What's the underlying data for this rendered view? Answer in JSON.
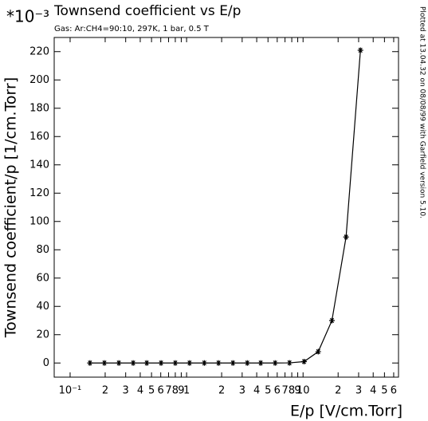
{
  "chart_data": {
    "type": "line",
    "title": "Townsend coefficient vs E/p",
    "subtitle": "Gas: Ar:CH4=90:10, 297K, 1 bar, 0.5 T",
    "side_note": "Plotted at 13.04.32 on 08/08/99 with Garfield version 5.10.",
    "x_label": "E/p [V/cm.Torr]",
    "y_label": "Townsend coefficient/p [1/cm.Torr]",
    "y_multiplier": "*10⁻³",
    "x_log": true,
    "color": "#000000",
    "x": [
      0.148,
      0.197,
      0.262,
      0.348,
      0.455,
      0.604,
      0.8,
      1.06,
      1.42,
      1.88,
      2.5,
      3.32,
      4.33,
      5.76,
      7.65,
      10.2,
      13.5,
      17.7,
      23.4,
      31.1
    ],
    "values": [
      0,
      0,
      0,
      0,
      0,
      0,
      0,
      0,
      0,
      0,
      0,
      0,
      0,
      0,
      0.1,
      1,
      8,
      30,
      89,
      221
    ],
    "xlim": [
      0.073,
      66
    ],
    "ylim": [
      -10,
      230
    ],
    "xticks": [
      {
        "value": 0.1,
        "label": "10⁻¹"
      },
      {
        "value": 0.2,
        "label": "2"
      },
      {
        "value": 0.3,
        "label": "3"
      },
      {
        "value": 0.4,
        "label": "4"
      },
      {
        "value": 0.5,
        "label": "5"
      },
      {
        "value": 0.6,
        "label": "6"
      },
      {
        "value": 0.7,
        "label": "7"
      },
      {
        "value": 0.8,
        "label": "8"
      },
      {
        "value": 0.9,
        "label": "9"
      },
      1,
      2,
      3,
      4,
      5,
      6,
      7,
      8,
      9,
      10,
      {
        "value": 20,
        "label": "2"
      },
      {
        "value": 30,
        "label": "3"
      },
      {
        "value": 40,
        "label": "4"
      },
      {
        "value": 50,
        "label": "5"
      },
      {
        "value": 60,
        "label": "6"
      }
    ],
    "yticks": [
      0,
      20,
      40,
      60,
      80,
      100,
      120,
      140,
      160,
      180,
      200,
      220
    ]
  }
}
